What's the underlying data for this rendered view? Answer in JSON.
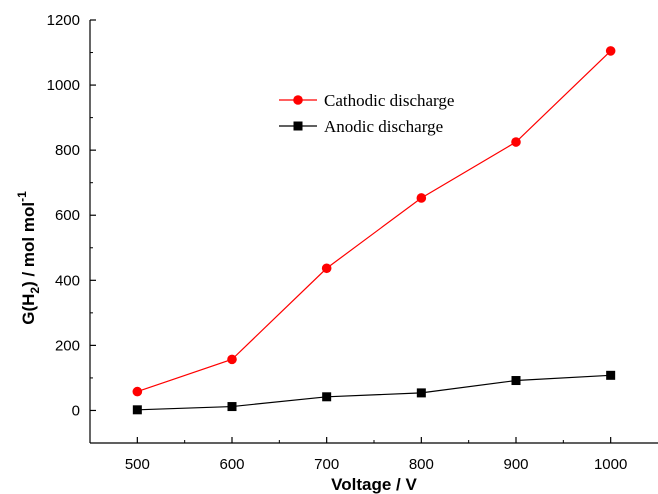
{
  "chart_data": {
    "type": "line",
    "xlabel": "Voltage / V",
    "ylabel_main": "G(H",
    "ylabel_sub": "2",
    "ylabel_rest": ") / mol mol",
    "ylabel_sup": "-1",
    "xlim": [
      450,
      1050
    ],
    "ylim": [
      -100,
      1200
    ],
    "x_ticks": [
      500,
      600,
      700,
      800,
      900,
      1000
    ],
    "y_ticks": [
      0,
      200,
      400,
      600,
      800,
      1000,
      1200
    ],
    "x_tick_labels": [
      "500",
      "600",
      "700",
      "800",
      "900",
      "1000"
    ],
    "y_tick_labels": [
      "0",
      "200",
      "400",
      "600",
      "800",
      "1000",
      "1200"
    ],
    "legend_position": "upper-center",
    "series": [
      {
        "name": "Cathodic discharge",
        "color": "#ff0000",
        "marker": "circle",
        "x": [
          500,
          600,
          700,
          800,
          900,
          1000
        ],
        "values": [
          58,
          157,
          437,
          653,
          825,
          1105
        ]
      },
      {
        "name": "Anodic discharge",
        "color": "#000000",
        "marker": "square",
        "x": [
          500,
          600,
          700,
          800,
          900,
          1000
        ],
        "values": [
          2,
          12,
          42,
          54,
          92,
          108
        ]
      }
    ]
  }
}
